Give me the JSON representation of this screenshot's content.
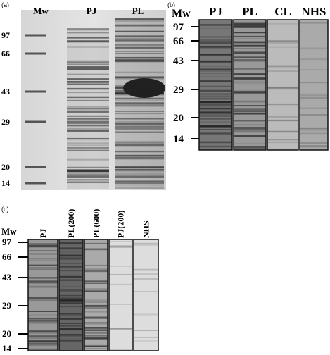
{
  "panel_a": {
    "label": "(a)",
    "lanes": [
      "Mw",
      "PJ",
      "PL"
    ],
    "markers": [
      "97",
      "66",
      "43",
      "29",
      "20",
      "14"
    ]
  },
  "panel_b": {
    "label": "(b)",
    "marker_header": "Mw",
    "lanes": [
      "PJ",
      "PL",
      "CL",
      "NHS"
    ],
    "markers": [
      "97",
      "66",
      "43",
      "29",
      "20",
      "14"
    ]
  },
  "panel_c": {
    "label": "(c)",
    "marker_header": "Mw",
    "lanes": [
      "PJ",
      "PL(200)",
      "PL(600)",
      "PJ(200)",
      "NHS"
    ],
    "markers": [
      "97",
      "66",
      "43",
      "29",
      "20",
      "14"
    ]
  }
}
